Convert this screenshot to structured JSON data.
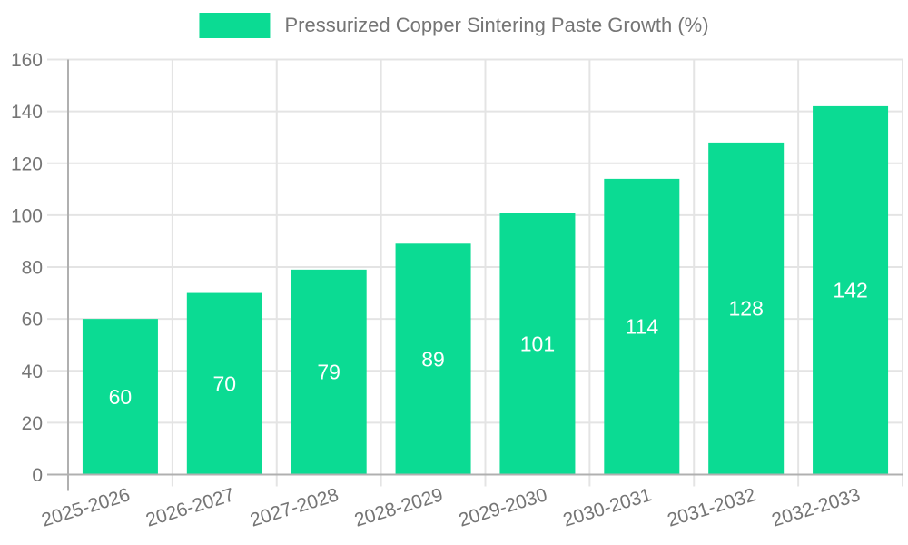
{
  "chart_data": {
    "type": "bar",
    "title": "Pressurized Copper Sintering Paste Growth (%)",
    "categories": [
      "2025-2026",
      "2026-2027",
      "2027-2028",
      "2028-2029",
      "2029-2030",
      "2030-2031",
      "2031-2032",
      "2032-2033"
    ],
    "values": [
      60,
      70,
      79,
      89,
      101,
      114,
      128,
      142
    ],
    "bar_value_labels": [
      "60",
      "70",
      "79",
      "89",
      "101",
      "114",
      "128",
      "142"
    ],
    "xlabel": "",
    "ylabel": "",
    "ylim": [
      0,
      160
    ],
    "yticks": [
      0,
      20,
      40,
      60,
      80,
      100,
      120,
      140,
      160
    ],
    "ytick_labels": [
      "0",
      "20",
      "40",
      "60",
      "80",
      "100",
      "120",
      "140",
      "160"
    ],
    "grid": true,
    "vertical_grid": true,
    "legend_position": "top-center",
    "bar_label_position": "inside-center",
    "x_tick_rotation_deg": -17
  },
  "colors": {
    "bar": "#0bdb93",
    "bar_label": "#ffffff",
    "axis_line": "#b0b0b0",
    "grid_line": "#e4e4e4",
    "tick_label": "#757575",
    "legend_text": "#757575",
    "background": "#ffffff"
  }
}
